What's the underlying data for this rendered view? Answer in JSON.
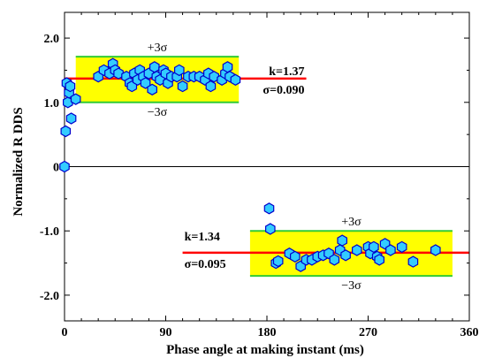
{
  "chart_data": {
    "type": "scatter",
    "title": "",
    "xlabel": "Phase angle at making instant (ms)",
    "ylabel": "Normalized R DDS",
    "xlim": [
      0,
      360
    ],
    "ylim": [
      -2.4,
      2.4
    ],
    "x_ticks": [
      "0",
      "90",
      "180",
      "270",
      "360"
    ],
    "y_ticks": [
      "2.0",
      "1.0",
      "0",
      "-1.0",
      "-2.0"
    ],
    "grid": false,
    "colors": {
      "marker_fill": "#33ccff",
      "marker_stroke": "#0000cc",
      "band_fill": "#ffff00",
      "band_edge": "#33cc33",
      "mean_line": "#ff0000"
    },
    "groups": [
      {
        "k_label": "k=1.37",
        "sigma_label": "σ=0.090",
        "plus_label": "+3σ",
        "minus_label": "−3σ",
        "mean": 1.37,
        "band": [
          1.0,
          1.71
        ],
        "band_x": [
          10,
          155
        ],
        "line_x": [
          0,
          215
        ],
        "points": [
          [
            0,
            0.0
          ],
          [
            1,
            0.55
          ],
          [
            2,
            1.3
          ],
          [
            3,
            1.0
          ],
          [
            4,
            1.15
          ],
          [
            5,
            1.25
          ],
          [
            6,
            0.75
          ],
          [
            10,
            1.05
          ],
          [
            30,
            1.4
          ],
          [
            35,
            1.5
          ],
          [
            40,
            1.45
          ],
          [
            43,
            1.6
          ],
          [
            45,
            1.5
          ],
          [
            48,
            1.45
          ],
          [
            55,
            1.4
          ],
          [
            58,
            1.3
          ],
          [
            60,
            1.25
          ],
          [
            62,
            1.45
          ],
          [
            65,
            1.35
          ],
          [
            67,
            1.5
          ],
          [
            70,
            1.4
          ],
          [
            72,
            1.3
          ],
          [
            75,
            1.45
          ],
          [
            78,
            1.2
          ],
          [
            80,
            1.55
          ],
          [
            82,
            1.4
          ],
          [
            85,
            1.35
          ],
          [
            88,
            1.5
          ],
          [
            90,
            1.45
          ],
          [
            92,
            1.3
          ],
          [
            95,
            1.4
          ],
          [
            100,
            1.4
          ],
          [
            102,
            1.5
          ],
          [
            105,
            1.25
          ],
          [
            110,
            1.4
          ],
          [
            115,
            1.4
          ],
          [
            120,
            1.4
          ],
          [
            125,
            1.35
          ],
          [
            128,
            1.45
          ],
          [
            130,
            1.25
          ],
          [
            133,
            1.4
          ],
          [
            140,
            1.35
          ],
          [
            143,
            1.45
          ],
          [
            145,
            1.55
          ],
          [
            147,
            1.4
          ],
          [
            152,
            1.35
          ]
        ]
      },
      {
        "k_label": "k=1.34",
        "sigma_label": "σ=0.095",
        "plus_label": "+3σ",
        "minus_label": "−3σ",
        "mean": -1.34,
        "band": [
          -1.0,
          -1.7
        ],
        "band_x": [
          165,
          345
        ],
        "line_x": [
          105,
          360
        ],
        "points": [
          [
            182,
            -0.65
          ],
          [
            183,
            -0.97
          ],
          [
            188,
            -1.5
          ],
          [
            190,
            -1.47
          ],
          [
            200,
            -1.35
          ],
          [
            205,
            -1.4
          ],
          [
            210,
            -1.55
          ],
          [
            215,
            -1.45
          ],
          [
            220,
            -1.45
          ],
          [
            225,
            -1.4
          ],
          [
            230,
            -1.38
          ],
          [
            235,
            -1.35
          ],
          [
            240,
            -1.45
          ],
          [
            245,
            -1.3
          ],
          [
            250,
            -1.38
          ],
          [
            247,
            -1.15
          ],
          [
            260,
            -1.3
          ],
          [
            270,
            -1.25
          ],
          [
            272,
            -1.35
          ],
          [
            275,
            -1.25
          ],
          [
            278,
            -1.4
          ],
          [
            280,
            -1.45
          ],
          [
            285,
            -1.2
          ],
          [
            290,
            -1.3
          ],
          [
            300,
            -1.25
          ],
          [
            310,
            -1.48
          ],
          [
            330,
            -1.3
          ]
        ]
      }
    ]
  }
}
